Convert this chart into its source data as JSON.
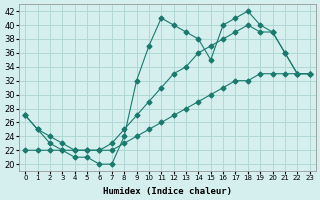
{
  "xlabel": "Humidex (Indice chaleur)",
  "bg_color": "#d4efee",
  "grid_color": "#b0d8d5",
  "line_color": "#1a7a6e",
  "xlim": [
    -0.5,
    23.5
  ],
  "ylim": [
    19,
    43
  ],
  "xticks": [
    0,
    1,
    2,
    3,
    4,
    5,
    6,
    7,
    8,
    9,
    10,
    11,
    12,
    13,
    14,
    15,
    16,
    17,
    18,
    19,
    20,
    21,
    22,
    23
  ],
  "yticks": [
    20,
    22,
    24,
    26,
    28,
    30,
    32,
    34,
    36,
    38,
    40,
    42
  ],
  "line1_x": [
    0,
    1,
    2,
    3,
    4,
    5,
    6,
    7,
    8,
    9,
    10,
    11,
    12,
    13,
    14,
    15,
    16,
    17,
    18,
    19,
    20,
    21,
    22,
    23
  ],
  "line1_y": [
    27,
    25,
    23,
    22,
    21,
    21,
    20,
    20,
    24,
    32,
    37,
    41,
    40,
    39,
    38,
    35,
    40,
    41,
    42,
    40,
    39,
    36,
    33,
    33
  ],
  "line2_x": [
    0,
    1,
    2,
    3,
    4,
    5,
    6,
    7,
    8,
    9,
    10,
    11,
    12,
    13,
    14,
    15,
    16,
    17,
    18,
    19,
    20,
    21,
    22,
    23
  ],
  "line2_y": [
    22,
    22,
    22,
    22,
    22,
    22,
    22,
    22,
    23,
    24,
    25,
    26,
    27,
    28,
    29,
    30,
    31,
    32,
    32,
    33,
    33,
    33,
    33,
    33
  ],
  "line3_x": [
    0,
    1,
    2,
    3,
    4,
    5,
    6,
    7,
    8,
    9,
    10,
    11,
    12,
    13,
    14,
    15,
    16,
    17,
    18,
    19,
    20,
    21,
    22,
    23
  ],
  "line3_y": [
    27,
    25,
    24,
    23,
    22,
    22,
    22,
    23,
    25,
    27,
    29,
    31,
    33,
    34,
    36,
    37,
    38,
    39,
    40,
    39,
    39,
    36,
    33,
    33
  ]
}
